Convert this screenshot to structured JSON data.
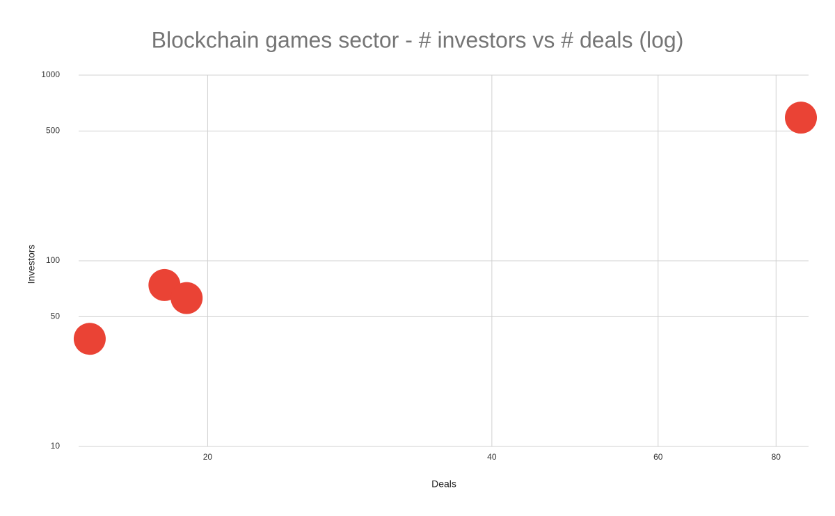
{
  "chart_data": {
    "type": "scatter",
    "title": "Blockchain games sector - # investors vs # deals (log)",
    "x_label": "Deals",
    "y_label": "Investors",
    "x": [
      15,
      18,
      19,
      85
    ],
    "values": [
      38,
      74,
      63,
      590
    ],
    "color": "#ea4335",
    "xlim": [
      14.6,
      86.6
    ],
    "xticks": [
      20,
      40,
      60,
      80
    ],
    "ylim": [
      10,
      1000
    ],
    "yticks": [
      10,
      50,
      100,
      500,
      1000
    ],
    "xscale": "log",
    "yscale": "log",
    "grid": true
  }
}
